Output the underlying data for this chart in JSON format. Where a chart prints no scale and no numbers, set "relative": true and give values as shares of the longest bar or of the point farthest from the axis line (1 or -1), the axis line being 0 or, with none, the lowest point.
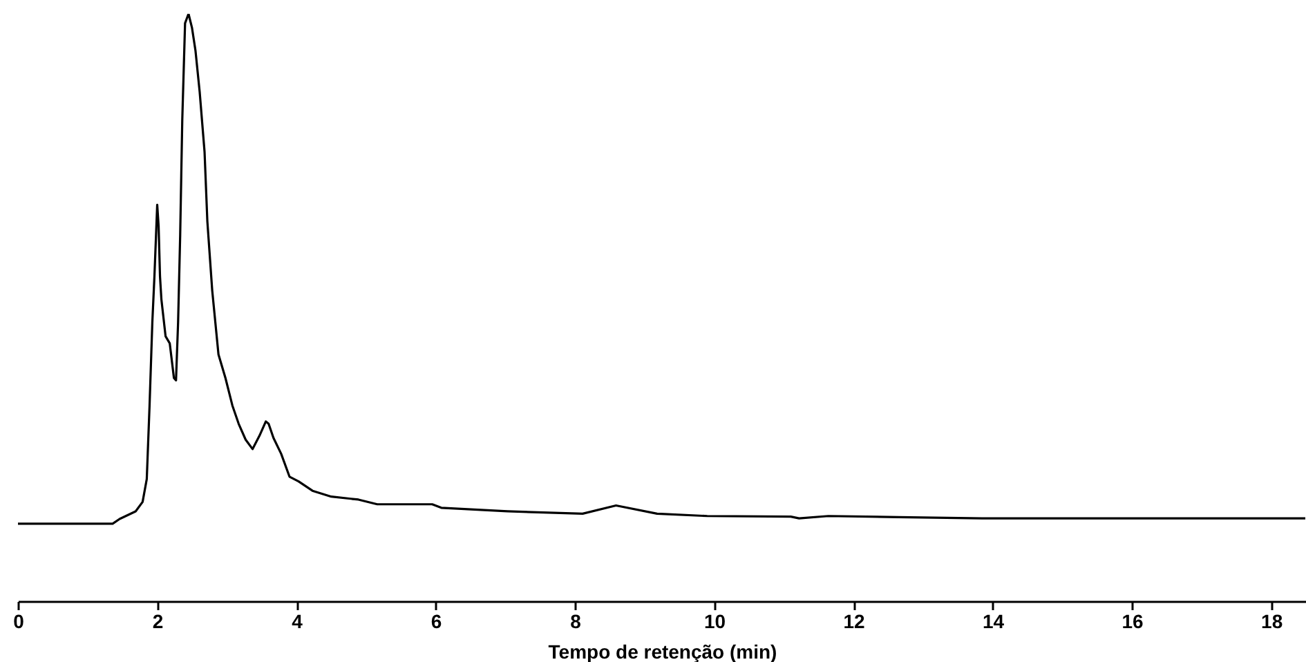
{
  "chart_data": {
    "type": "line",
    "xlabel": "Tempo de retenção (min)",
    "relative": true,
    "xlim": [
      0,
      18.5
    ],
    "xticks": [
      0,
      2,
      4,
      6,
      8,
      10,
      12,
      14,
      16,
      18
    ],
    "grid": false,
    "marker": "none",
    "line_style": "solid",
    "series": [
      {
        "color": "#000000",
        "x": [
          0,
          1.36,
          1.46,
          1.69,
          1.79,
          1.85,
          1.89,
          1.93,
          1.96,
          2.0,
          2.02,
          2.04,
          2.06,
          2.12,
          2.18,
          2.24,
          2.27,
          2.3,
          2.33,
          2.36,
          2.4,
          2.45,
          2.5,
          2.55,
          2.61,
          2.68,
          2.72,
          2.79,
          2.88,
          2.98,
          3.08,
          3.17,
          3.27,
          3.37,
          3.47,
          3.56,
          3.6,
          3.67,
          3.78,
          3.9,
          4.03,
          4.23,
          4.5,
          4.89,
          5.16,
          5.95,
          6.08,
          7.03,
          8.11,
          8.59,
          9.18,
          9.9,
          11.1,
          11.22,
          11.64,
          12.65,
          13.85,
          18.49
        ],
        "values": [
          0.132,
          0.132,
          0.14,
          0.153,
          0.169,
          0.208,
          0.333,
          0.475,
          0.553,
          0.675,
          0.639,
          0.553,
          0.514,
          0.451,
          0.439,
          0.38,
          0.376,
          0.475,
          0.624,
          0.82,
          0.984,
          1.0,
          0.976,
          0.937,
          0.867,
          0.765,
          0.647,
          0.529,
          0.42,
          0.38,
          0.333,
          0.302,
          0.275,
          0.259,
          0.282,
          0.306,
          0.302,
          0.278,
          0.251,
          0.212,
          0.204,
          0.188,
          0.178,
          0.173,
          0.165,
          0.165,
          0.159,
          0.153,
          0.149,
          0.163,
          0.149,
          0.145,
          0.144,
          0.141,
          0.145,
          0.143,
          0.141,
          0.141
        ]
      }
    ]
  }
}
